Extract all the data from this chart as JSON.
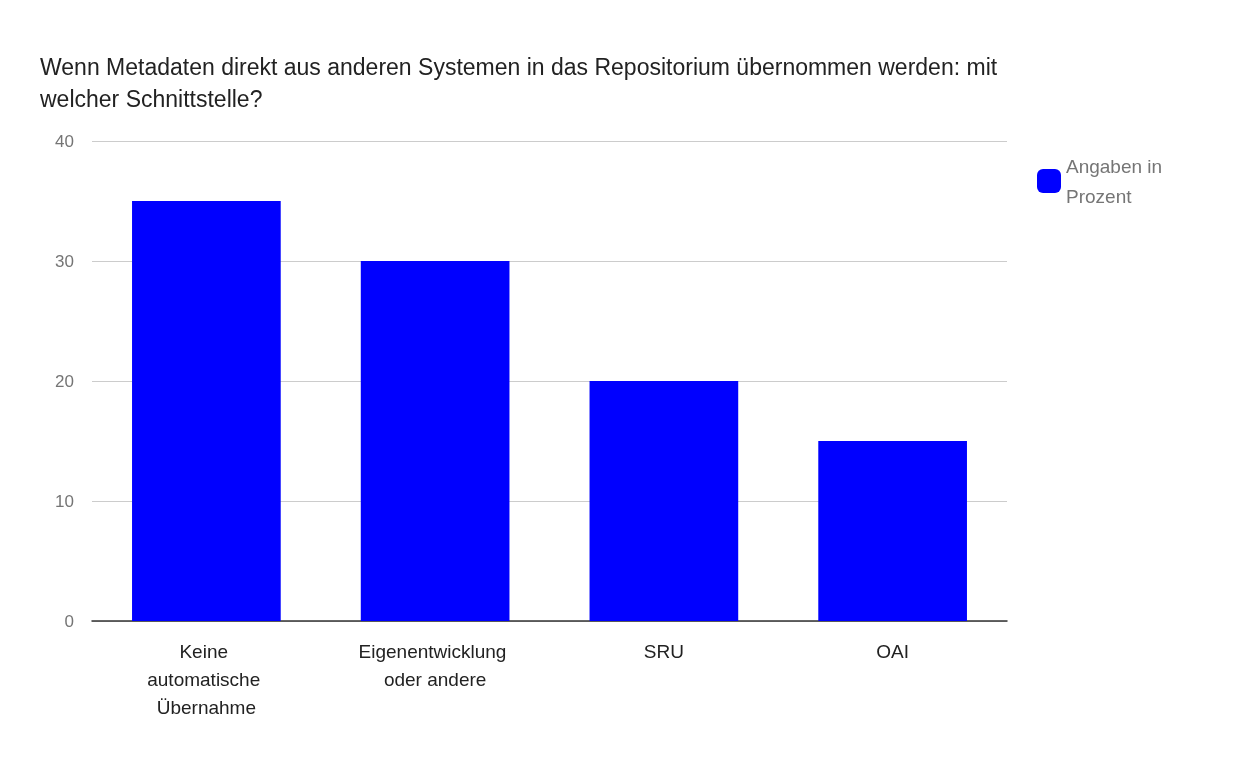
{
  "chart_data": {
    "type": "bar",
    "title": "Wenn Metadaten direkt aus anderen Systemen in das Repositorium übernommen werden: mit welcher Schnittstelle?",
    "categories": [
      "Keine automatische Übernahme",
      "Eigenentwicklung oder andere",
      "SRU",
      "OAI"
    ],
    "series": [
      {
        "name": "Angaben in Prozent",
        "color": "#0000ff",
        "values": [
          35,
          30,
          20,
          15
        ]
      }
    ],
    "ylim": [
      0,
      40
    ],
    "yticks": [
      0,
      10,
      20,
      30,
      40
    ],
    "grid": "y",
    "legend": "top right"
  }
}
